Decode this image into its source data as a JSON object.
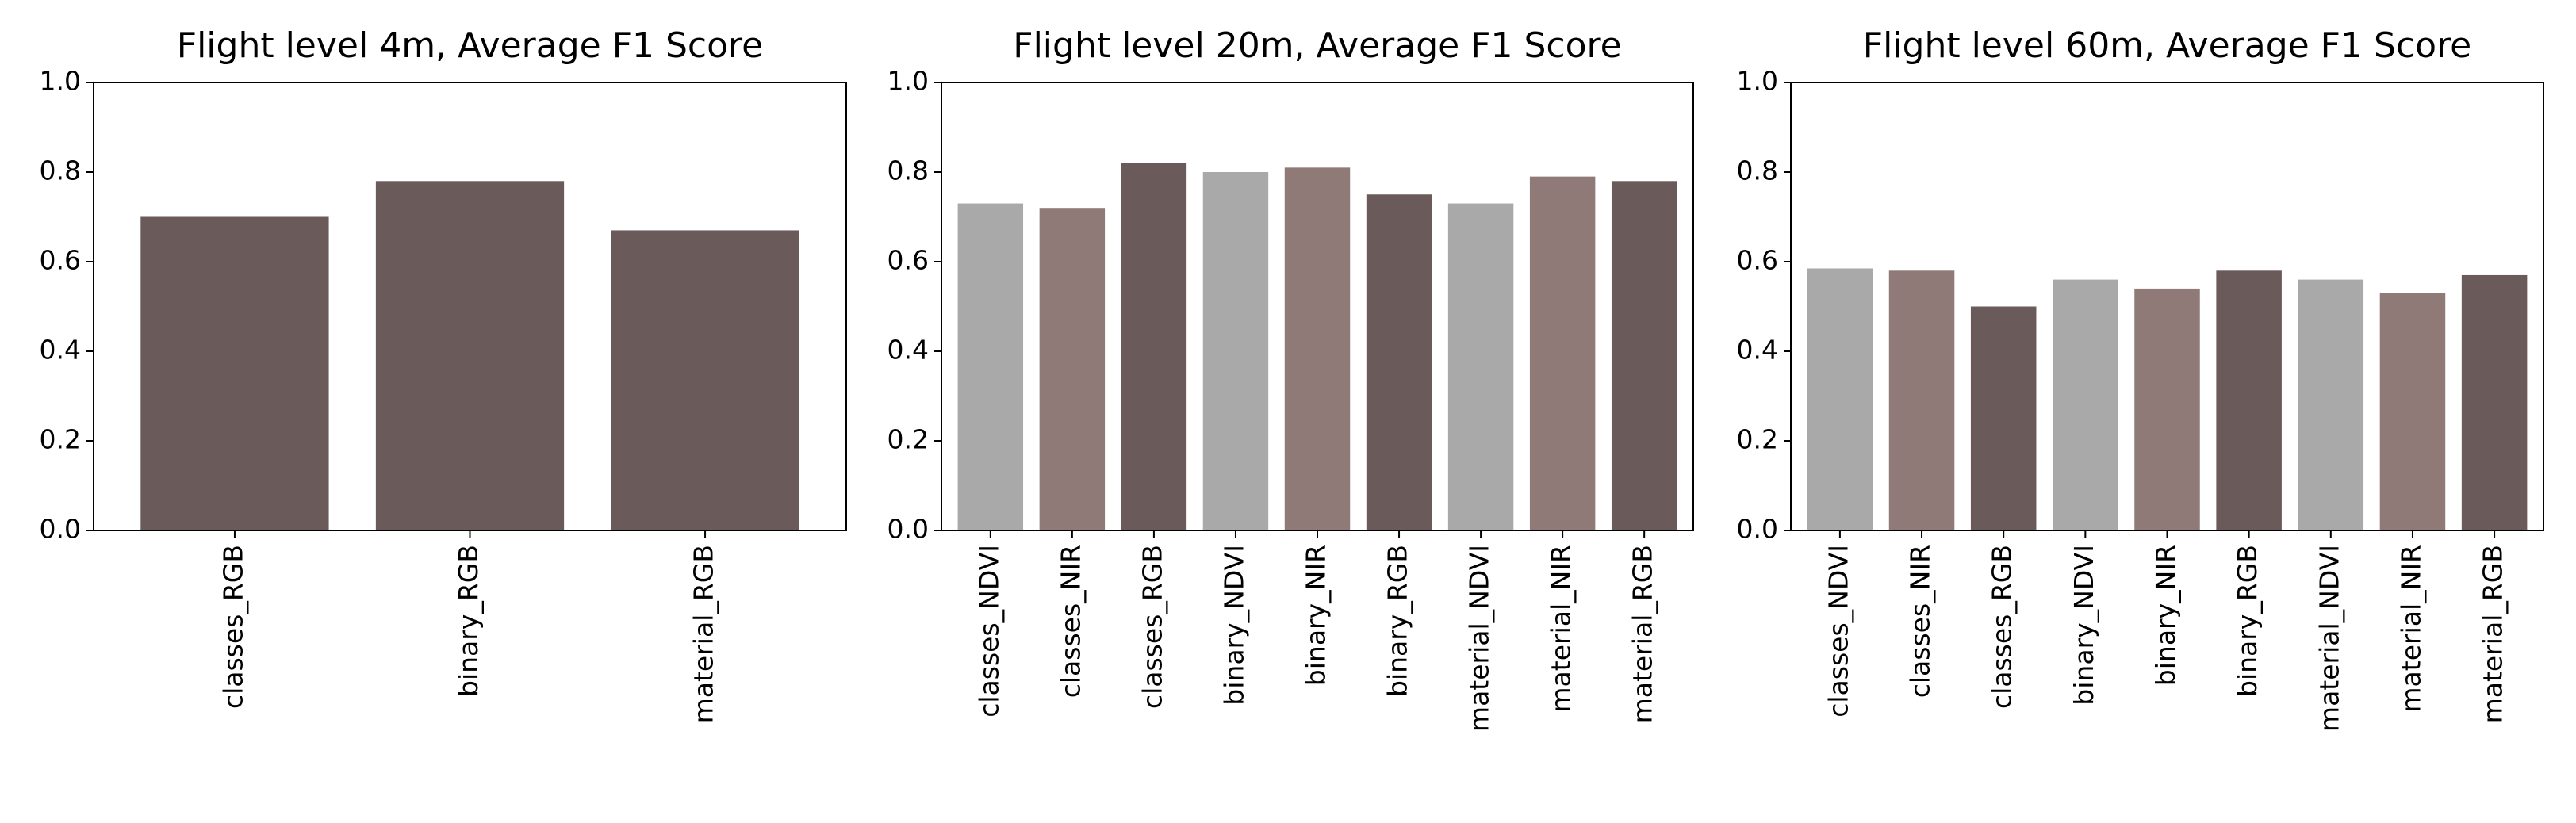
{
  "chart_data": [
    {
      "type": "bar",
      "title": "Flight level 4m, Average F1 Score",
      "categories": [
        "classes_RGB",
        "binary_RGB",
        "material_RGB"
      ],
      "values": [
        0.7,
        0.78,
        0.67
      ],
      "colors": [
        "#6b5a5a",
        "#6b5a5a",
        "#6b5a5a"
      ],
      "ylim": [
        0,
        1
      ],
      "yticks": [
        {
          "value": 0,
          "label": "0.0"
        },
        0.2,
        0.4,
        0.6,
        0.8,
        {
          "value": 1,
          "label": "1.0"
        }
      ]
    },
    {
      "type": "bar",
      "title": "Flight level 20m, Average F1 Score",
      "categories": [
        "classes_NDVI",
        "classes_NIR",
        "classes_RGB",
        "binary_NDVI",
        "binary_NIR",
        "binary_RGB",
        "material_NDVI",
        "material_NIR",
        "material_RGB"
      ],
      "values": [
        0.73,
        0.72,
        0.82,
        0.8,
        0.81,
        0.75,
        0.73,
        0.79,
        0.78
      ],
      "colors": [
        "#a9a9a9",
        "#8f7a78",
        "#6b5a5a",
        "#a9a9a9",
        "#8f7a78",
        "#6b5a5a",
        "#a9a9a9",
        "#8f7a78",
        "#6b5a5a"
      ],
      "ylim": [
        0,
        1
      ],
      "yticks": [
        {
          "value": 0,
          "label": "0.0"
        },
        0.2,
        0.4,
        0.6,
        0.8,
        {
          "value": 1,
          "label": "1.0"
        }
      ]
    },
    {
      "type": "bar",
      "title": "Flight level 60m, Average F1 Score",
      "categories": [
        "classes_NDVI",
        "classes_NIR",
        "classes_RGB",
        "binary_NDVI",
        "binary_NIR",
        "binary_RGB",
        "material_NDVI",
        "material_NIR",
        "material_RGB"
      ],
      "values": [
        0.585,
        0.58,
        0.5,
        0.56,
        0.54,
        0.58,
        0.56,
        0.53,
        0.57
      ],
      "colors": [
        "#a9a9a9",
        "#8f7a78",
        "#6b5a5a",
        "#a9a9a9",
        "#8f7a78",
        "#6b5a5a",
        "#a9a9a9",
        "#8f7a78",
        "#6b5a5a"
      ],
      "ylim": [
        0,
        1
      ],
      "yticks": [
        {
          "value": 0,
          "label": "0.0"
        },
        0.2,
        0.4,
        0.6,
        0.8,
        {
          "value": 1,
          "label": "1.0"
        }
      ]
    }
  ]
}
